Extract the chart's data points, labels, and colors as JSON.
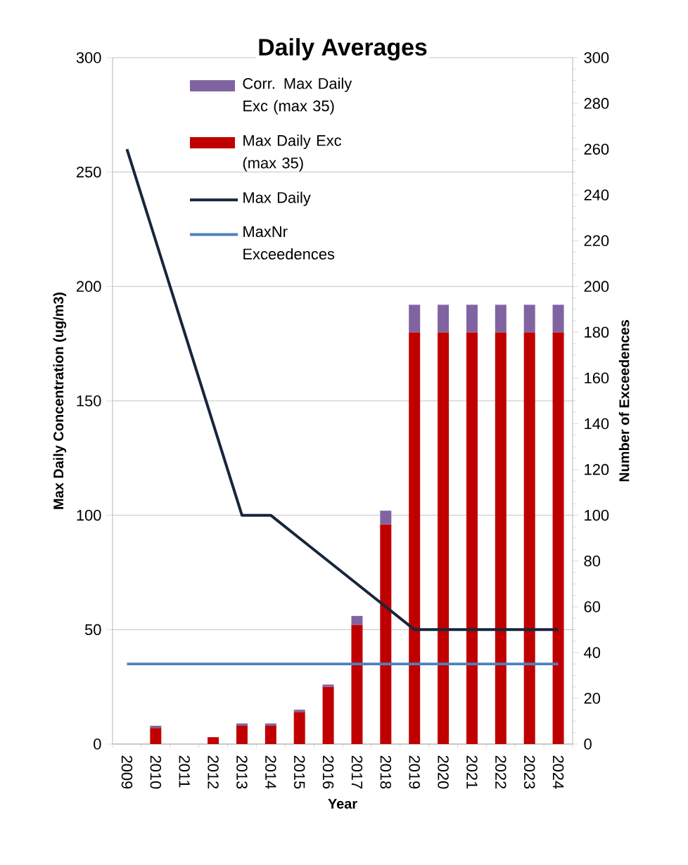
{
  "chart_data": {
    "type": "bar",
    "title": "Daily Averages",
    "xlabel": "Year",
    "ylabel": "Max Daily Concentration (ug/m3)",
    "y2label": "Number of Exceedences",
    "categories": [
      "2009",
      "2010",
      "2011",
      "2012",
      "2013",
      "2014",
      "2015",
      "2016",
      "2017",
      "2018",
      "2019",
      "2020",
      "2021",
      "2022",
      "2023",
      "2024"
    ],
    "stacked": true,
    "series": [
      {
        "name": "Max Daily Exc (max 35)",
        "color": "#c00000",
        "axis": "y2",
        "values": [
          0,
          7,
          0,
          3,
          8,
          8,
          14,
          25,
          52,
          96,
          180,
          180,
          180,
          180,
          180,
          180
        ]
      },
      {
        "name": "Corr. Max Daily Exc (max 35)",
        "color": "#8064a2",
        "axis": "y2",
        "values": [
          0,
          1,
          0,
          0,
          1,
          1,
          1,
          1,
          4,
          6,
          12,
          12,
          12,
          12,
          12,
          12
        ]
      },
      {
        "name": "Max Daily",
        "type": "line",
        "color": "#17263c",
        "values": [
          260,
          220,
          180,
          140,
          100,
          100,
          90,
          80,
          70,
          60,
          50,
          50,
          50,
          50,
          50,
          50
        ]
      },
      {
        "name": "MaxNr Exceedences",
        "type": "line",
        "color": "#4f81bd",
        "axis": "y2",
        "values": [
          35,
          35,
          35,
          35,
          35,
          35,
          35,
          35,
          35,
          35,
          35,
          35,
          35,
          35,
          35,
          35
        ]
      }
    ],
    "ylim": [
      0,
      300
    ],
    "yticks": [
      0,
      50,
      100,
      150,
      200,
      250,
      300
    ],
    "y2lim": [
      0,
      300
    ],
    "y2ticks": [
      0,
      20,
      40,
      60,
      80,
      100,
      120,
      140,
      160,
      180,
      200,
      220,
      240,
      260,
      280,
      300
    ],
    "grid": "y",
    "legend": "top left",
    "marker": "none",
    "line_style": "solid"
  }
}
